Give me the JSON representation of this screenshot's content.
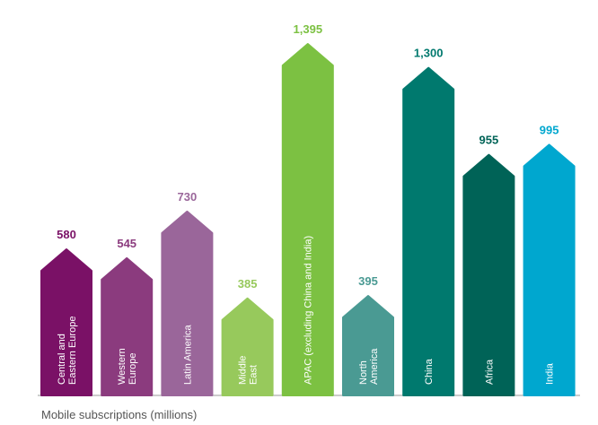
{
  "chart_data": {
    "type": "bar",
    "caption": "Mobile subscriptions (millions)",
    "categories": [
      [
        "Central and",
        "Eastern Europe"
      ],
      [
        "Western",
        "Europe"
      ],
      [
        "Latin America"
      ],
      [
        "Middle",
        "East"
      ],
      [
        "APAC (excluding China and India)"
      ],
      [
        "North",
        "America"
      ],
      [
        "China"
      ],
      [
        "Africa"
      ],
      [
        "India"
      ]
    ],
    "values": [
      580,
      545,
      730,
      385,
      1395,
      395,
      1300,
      955,
      995
    ],
    "value_labels": [
      "580",
      "545",
      "730",
      "385",
      "1,395",
      "395",
      "1,300",
      "955",
      "995"
    ],
    "colors": [
      "#7a1166",
      "#8b3b7e",
      "#9a669a",
      "#97c95c",
      "#7cc142",
      "#4a9a93",
      "#00796e",
      "#006357",
      "#00a7cf"
    ],
    "label_colors": [
      "#7a1166",
      "#8b3b7e",
      "#9a669a",
      "#97c95c",
      "#7cc142",
      "#4a9a93",
      "#00796e",
      "#006357",
      "#00a7cf"
    ],
    "ylim": [
      0,
      1395
    ],
    "grid": false,
    "legend": "none",
    "bar_shape": "arrow-up",
    "baseline_color": "#9a9a9a"
  }
}
